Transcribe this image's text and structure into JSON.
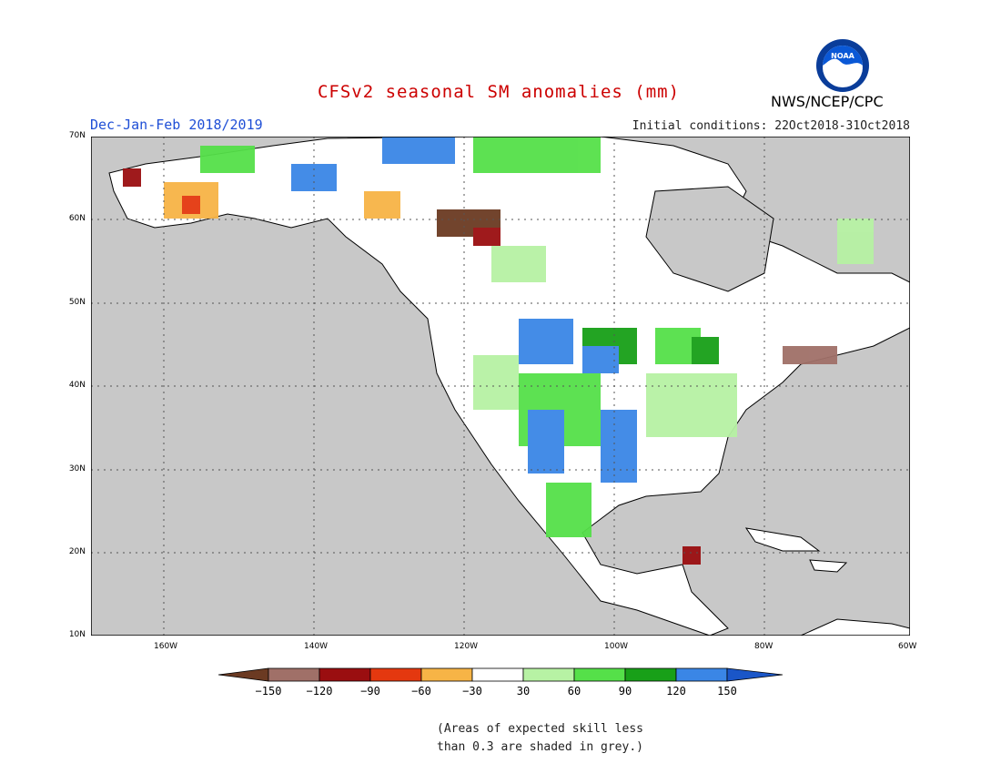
{
  "header": {
    "title": "CFSv2 seasonal SM anomalies (mm)",
    "season": "Dec-Jan-Feb 2018/2019",
    "initial_conditions": "Initial conditions: 22Oct2018-31Oct2018",
    "agency": "NWS/NCEP/CPC",
    "logo_text": "NOAA"
  },
  "map": {
    "lat_labels": [
      "70N",
      "60N",
      "50N",
      "40N",
      "30N",
      "20N",
      "10N"
    ],
    "lon_labels": [
      "160W",
      "140W",
      "120W",
      "100W",
      "80W",
      "60W"
    ],
    "colors": {
      "land_grey": "#c8c8c8",
      "ocean": "#c8c8c8",
      "neutral": "#ffffff"
    }
  },
  "legend": {
    "tick_labels": [
      "-150",
      "-120",
      "-90",
      "-60",
      "-30",
      "30",
      "60",
      "90",
      "120",
      "150"
    ],
    "colors": [
      "#6b3a22",
      "#a07068",
      "#9a0e10",
      "#e4380f",
      "#f7b446",
      "#ffffff",
      "#b7f2a4",
      "#55e049",
      "#18a018",
      "#3a86e6",
      "#1a56c8"
    ]
  },
  "note": {
    "line1": "(Areas of expected skill less",
    "line2": "than 0.3 are shaded in grey.)"
  }
}
